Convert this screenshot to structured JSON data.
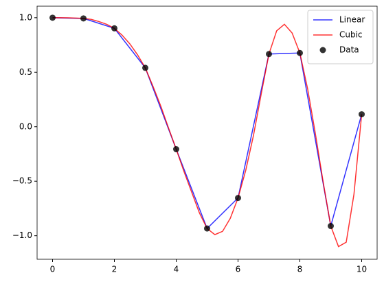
{
  "chart_data": {
    "type": "line",
    "series": [
      {
        "name": "Linear",
        "color": "#0000ff",
        "kind": "line",
        "x": [
          0,
          1,
          2,
          3,
          4,
          5,
          6,
          7,
          8,
          9,
          10
        ],
        "values": [
          1.0,
          0.9938,
          0.9029,
          0.5403,
          -0.206,
          -0.9336,
          -0.6536,
          0.6669,
          0.6765,
          -0.9111,
          0.1142
        ]
      },
      {
        "name": "Cubic",
        "color": "#ff0000",
        "kind": "line",
        "x": [
          0,
          0.25,
          0.5,
          0.75,
          1,
          1.25,
          1.5,
          1.75,
          2,
          2.25,
          2.5,
          2.75,
          3,
          3.25,
          3.5,
          3.75,
          4,
          4.25,
          4.5,
          4.75,
          5,
          5.25,
          5.5,
          5.75,
          6,
          6.25,
          6.5,
          6.75,
          7,
          7.25,
          7.5,
          7.75,
          8,
          8.25,
          8.5,
          8.75,
          9,
          9.25,
          9.5,
          9.75,
          10
        ],
        "values": [
          1.0,
          1.0,
          0.999,
          0.997,
          0.994,
          0.985,
          0.965,
          0.94,
          0.903,
          0.84,
          0.76,
          0.66,
          0.54,
          0.37,
          0.19,
          -0.01,
          -0.206,
          -0.41,
          -0.6,
          -0.79,
          -0.934,
          -0.99,
          -0.96,
          -0.84,
          -0.654,
          -0.4,
          -0.08,
          0.3,
          0.667,
          0.88,
          0.94,
          0.86,
          0.677,
          0.35,
          -0.06,
          -0.5,
          -0.911,
          -1.1,
          -1.06,
          -0.62,
          0.114
        ]
      },
      {
        "name": "Data",
        "color": "#000000",
        "kind": "scatter",
        "x": [
          0,
          1,
          2,
          3,
          4,
          5,
          6,
          7,
          8,
          9,
          10
        ],
        "values": [
          1.0,
          0.9938,
          0.9029,
          0.5403,
          -0.206,
          -0.9336,
          -0.6536,
          0.6669,
          0.6765,
          -0.9111,
          0.1142
        ]
      }
    ],
    "xlim": [
      -0.5,
      10.5
    ],
    "ylim": [
      -1.216,
      1.106
    ],
    "xticks": [
      0,
      2,
      4,
      6,
      8,
      10
    ],
    "yticks": [
      {
        "value": -1.0,
        "label": "−1.0"
      },
      {
        "value": -0.5,
        "label": "−0.5"
      },
      {
        "value": 0.0,
        "label": "0.0"
      },
      {
        "value": 0.5,
        "label": "0.5"
      },
      {
        "value": 1.0,
        "label": "1.0"
      }
    ],
    "legend": "upper right"
  }
}
